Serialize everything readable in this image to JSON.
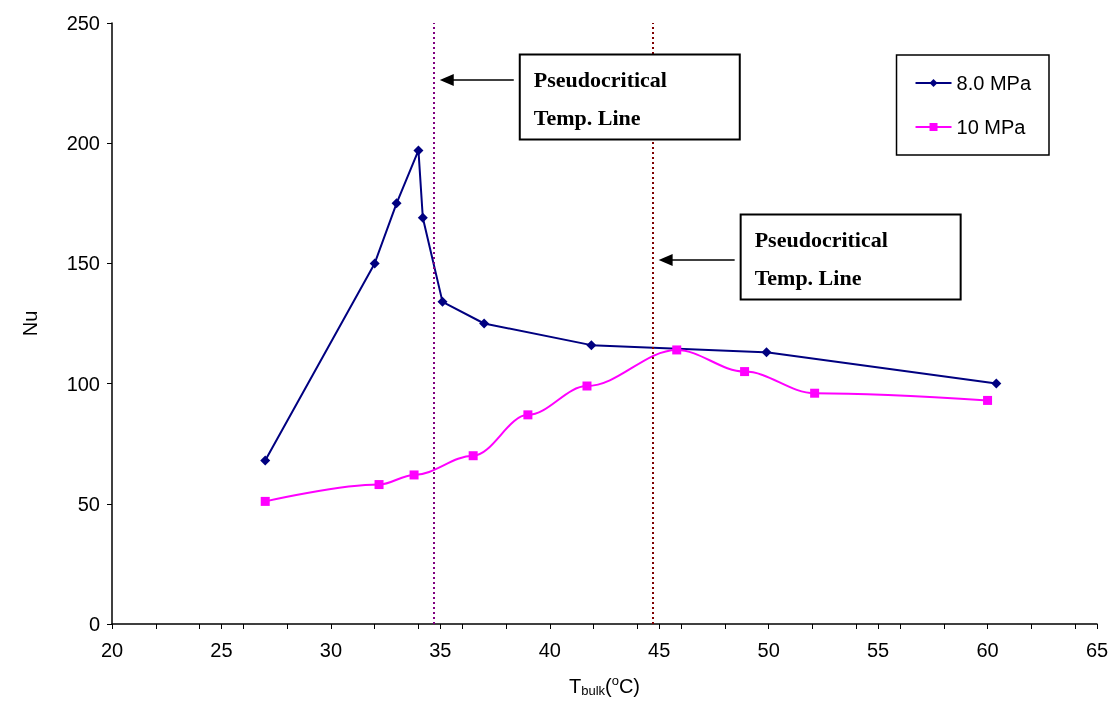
{
  "chart_data": {
    "type": "line",
    "xlabel": "T$_{bulk}$($^{o}$C)",
    "ylabel": "Nu",
    "xlim": [
      20,
      65
    ],
    "xticks": [
      20,
      25,
      30,
      35,
      40,
      45,
      50,
      55,
      60,
      65
    ],
    "ylim": [
      0,
      250
    ],
    "yticks": [
      0,
      50,
      100,
      150,
      200,
      250
    ],
    "grid": false,
    "legend": "top right",
    "series": [
      {
        "name": "8.0 MPa",
        "color": "#000080",
        "marker": "diamond",
        "x": [
          27.0,
          32.0,
          33.0,
          34.0,
          34.2,
          35.1,
          37.0,
          41.9,
          49.9,
          60.4
        ],
        "values": [
          68,
          150,
          175,
          197,
          169,
          134,
          125,
          116,
          113,
          100
        ]
      },
      {
        "name": "10 MPa",
        "color": "#ff00ff",
        "marker": "square",
        "x": [
          27.0,
          32.2,
          33.8,
          36.5,
          39.0,
          41.7,
          45.8,
          48.9,
          52.1,
          60.0
        ],
        "values": [
          51,
          58,
          62,
          70,
          87,
          99,
          114,
          105,
          96,
          93
        ]
      }
    ],
    "ref_lines": [
      {
        "axis": "x",
        "value": 34.7,
        "color": "#800080",
        "line_style": "dotted"
      },
      {
        "axis": "x",
        "value": 44.7,
        "color": "#800000",
        "line_style": "dotted"
      }
    ],
    "annotations": [
      "Pseudocritical\nTemp. Line",
      "Pseudocritical\nTemp. Line"
    ]
  }
}
